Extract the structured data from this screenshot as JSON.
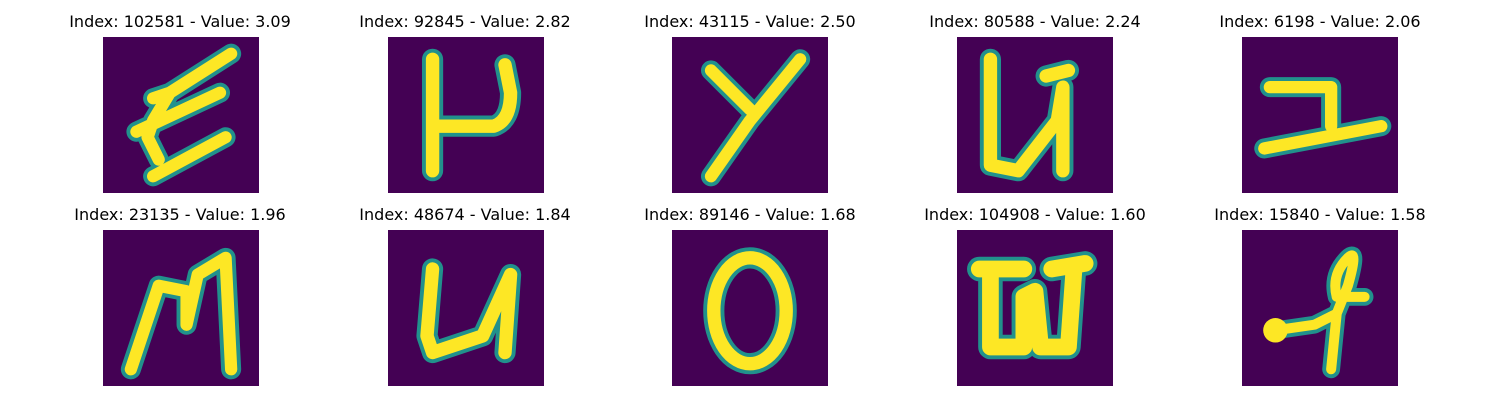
{
  "colors": {
    "background": "#440154",
    "stroke_edge": "#21918c",
    "stroke_core": "#fde725"
  },
  "panels": [
    {
      "title": "Index: 102581 - Value: 3.09",
      "glyph": "epsilon-like-scribble"
    },
    {
      "title": "Index: 92845 - Value: 2.82",
      "glyph": "letter-mu-like"
    },
    {
      "title": "Index: 43115 - Value: 2.50",
      "glyph": "letter-y"
    },
    {
      "title": "Index: 80588 - Value: 2.24",
      "glyph": "letter-u"
    },
    {
      "title": "Index: 6198 - Value: 2.06",
      "glyph": "letter-z-like"
    },
    {
      "title": "Index: 23135 - Value: 1.96",
      "glyph": "letter-m"
    },
    {
      "title": "Index: 48674 - Value: 1.84",
      "glyph": "letter-u"
    },
    {
      "title": "Index: 89146 - Value: 1.68",
      "glyph": "letter-o"
    },
    {
      "title": "Index: 104908 - Value: 1.60",
      "glyph": "letter-w-like"
    },
    {
      "title": "Index: 15840 - Value: 1.58",
      "glyph": "loop-glyph"
    }
  ]
}
